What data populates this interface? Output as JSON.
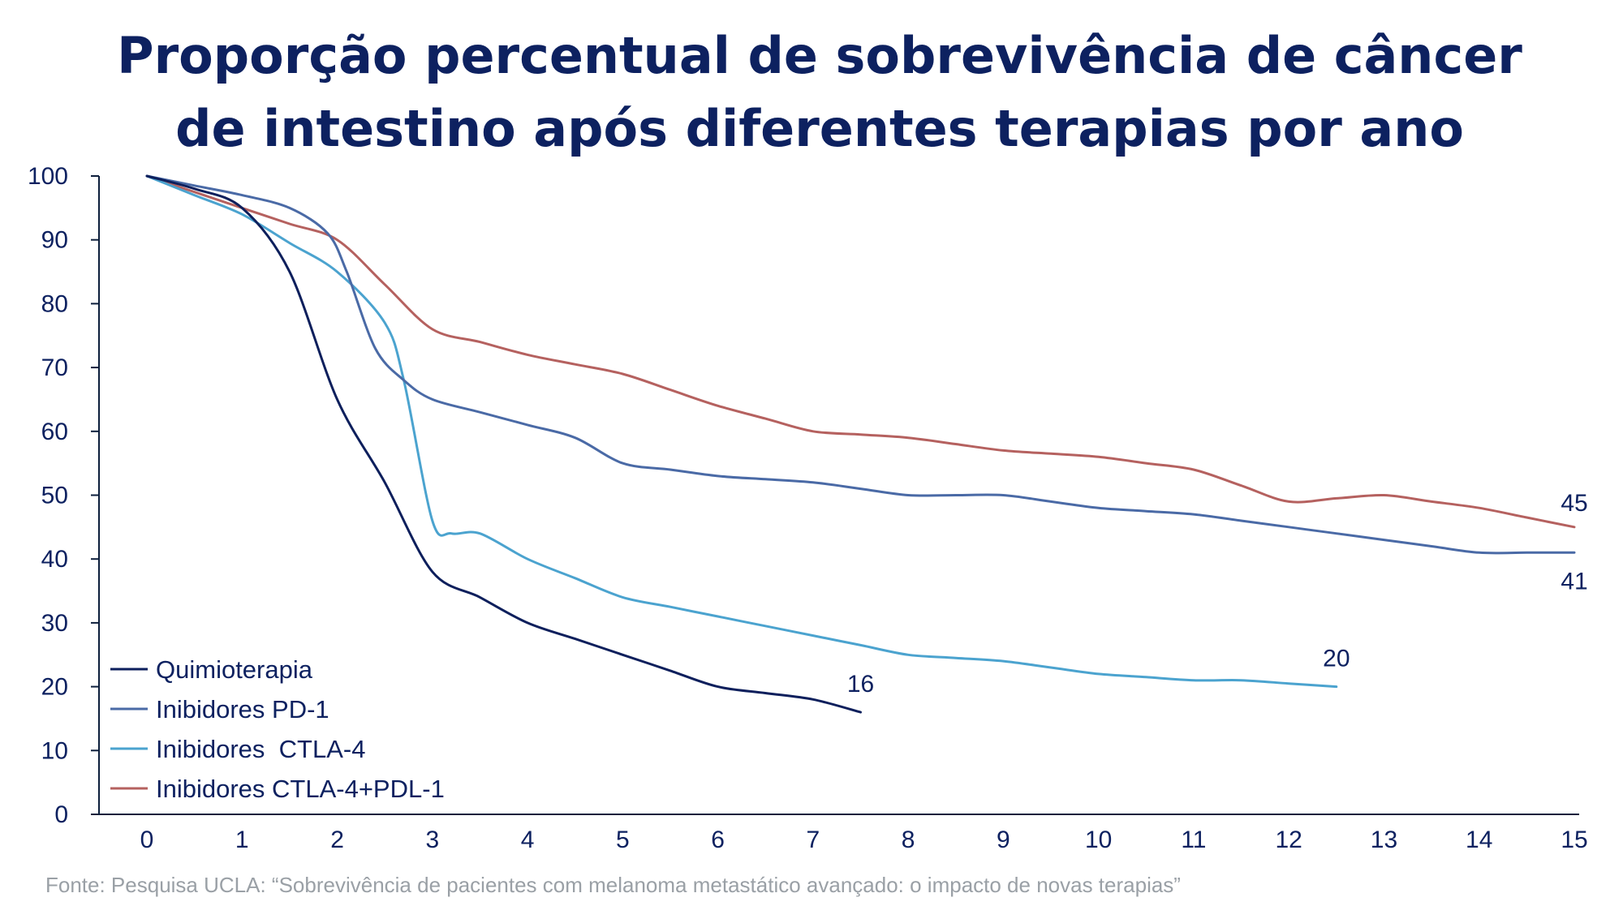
{
  "chart_data": {
    "type": "line",
    "title_lines": [
      "Proporção percentual de sobrevivência de câncer",
      "de intestino após diferentes terapias por ano"
    ],
    "xlabel": "",
    "ylabel": "",
    "xlim": [
      0,
      15
    ],
    "ylim": [
      0,
      100
    ],
    "x_ticks": [
      "0",
      "1",
      "2",
      "3",
      "4",
      "5",
      "6",
      "7",
      "8",
      "9",
      "10",
      "11",
      "12",
      "13",
      "14",
      "15"
    ],
    "y_ticks": [
      "0",
      "10",
      "20",
      "30",
      "40",
      "50",
      "60",
      "70",
      "80",
      "90",
      "100"
    ],
    "grid": false,
    "legend_position": "bottom-left",
    "series": [
      {
        "name": "Quimioterapia",
        "color": "#0d1f5c",
        "points": [
          [
            0,
            100
          ],
          [
            0.5,
            98
          ],
          [
            1,
            95
          ],
          [
            1.5,
            85
          ],
          [
            2,
            65
          ],
          [
            2.5,
            52
          ],
          [
            3,
            38
          ],
          [
            3.5,
            34
          ],
          [
            4,
            30
          ],
          [
            4.5,
            27.5
          ],
          [
            5,
            25
          ],
          [
            5.5,
            22.5
          ],
          [
            6,
            20
          ],
          [
            6.5,
            19
          ],
          [
            7,
            18
          ],
          [
            7.5,
            16
          ]
        ],
        "end_label": "16"
      },
      {
        "name": "Inibidores PD-1",
        "color": "#4a6aa6",
        "points": [
          [
            0,
            100
          ],
          [
            0.5,
            98.5
          ],
          [
            1,
            97
          ],
          [
            1.5,
            95
          ],
          [
            1.9,
            91
          ],
          [
            2.1,
            85
          ],
          [
            2.4,
            73
          ],
          [
            2.7,
            68
          ],
          [
            3,
            65
          ],
          [
            3.5,
            63
          ],
          [
            4,
            61
          ],
          [
            4.5,
            59
          ],
          [
            5,
            55
          ],
          [
            5.5,
            54
          ],
          [
            6,
            53
          ],
          [
            6.5,
            52.5
          ],
          [
            7,
            52
          ],
          [
            7.5,
            51
          ],
          [
            8,
            50
          ],
          [
            8.5,
            50
          ],
          [
            9,
            50
          ],
          [
            9.5,
            49
          ],
          [
            10,
            48
          ],
          [
            10.5,
            47.5
          ],
          [
            11,
            47
          ],
          [
            11.5,
            46
          ],
          [
            12,
            45
          ],
          [
            12.5,
            44
          ],
          [
            13,
            43
          ],
          [
            13.5,
            42
          ],
          [
            14,
            41
          ],
          [
            14.5,
            41
          ],
          [
            15,
            41
          ]
        ],
        "end_label": "41"
      },
      {
        "name": "Inibidores  CTLA-4",
        "color": "#4ba3cf",
        "points": [
          [
            0,
            100
          ],
          [
            0.5,
            97
          ],
          [
            1,
            94
          ],
          [
            1.5,
            89.5
          ],
          [
            2,
            85
          ],
          [
            2.5,
            77
          ],
          [
            2.7,
            68
          ],
          [
            3,
            46
          ],
          [
            3.2,
            44
          ],
          [
            3.5,
            44
          ],
          [
            4,
            40
          ],
          [
            4.5,
            37
          ],
          [
            5,
            34
          ],
          [
            5.5,
            32.5
          ],
          [
            6,
            31
          ],
          [
            6.5,
            29.5
          ],
          [
            7,
            28
          ],
          [
            7.5,
            26.5
          ],
          [
            8,
            25
          ],
          [
            8.5,
            24.5
          ],
          [
            9,
            24
          ],
          [
            9.5,
            23
          ],
          [
            10,
            22
          ],
          [
            10.5,
            21.5
          ],
          [
            11,
            21
          ],
          [
            11.5,
            21
          ],
          [
            12,
            20.5
          ],
          [
            12.5,
            20
          ]
        ],
        "end_label": "20"
      },
      {
        "name": "Inibidores CTLA-4+PDL-1",
        "color": "#b5615f",
        "points": [
          [
            0,
            100
          ],
          [
            0.5,
            97.5
          ],
          [
            1,
            95
          ],
          [
            1.5,
            92.5
          ],
          [
            2,
            90
          ],
          [
            2.5,
            83
          ],
          [
            3,
            76
          ],
          [
            3.5,
            74
          ],
          [
            4,
            72
          ],
          [
            4.5,
            70.5
          ],
          [
            5,
            69
          ],
          [
            5.5,
            66.5
          ],
          [
            6,
            64
          ],
          [
            6.5,
            62
          ],
          [
            7,
            60
          ],
          [
            7.5,
            59.5
          ],
          [
            8,
            59
          ],
          [
            8.5,
            58
          ],
          [
            9,
            57
          ],
          [
            9.5,
            56.5
          ],
          [
            10,
            56
          ],
          [
            10.5,
            55
          ],
          [
            11,
            54
          ],
          [
            11.5,
            51.5
          ],
          [
            12,
            49
          ],
          [
            12.5,
            49.5
          ],
          [
            13,
            50
          ],
          [
            13.5,
            49
          ],
          [
            14,
            48
          ],
          [
            14.5,
            46.5
          ],
          [
            15,
            45
          ]
        ],
        "end_label": "45"
      }
    ]
  },
  "source": {
    "text": "Fonte: Pesquisa UCLA: “Sobrevivência de pacientes com melanoma metastático avançado: o impacto de novas terapias”"
  }
}
